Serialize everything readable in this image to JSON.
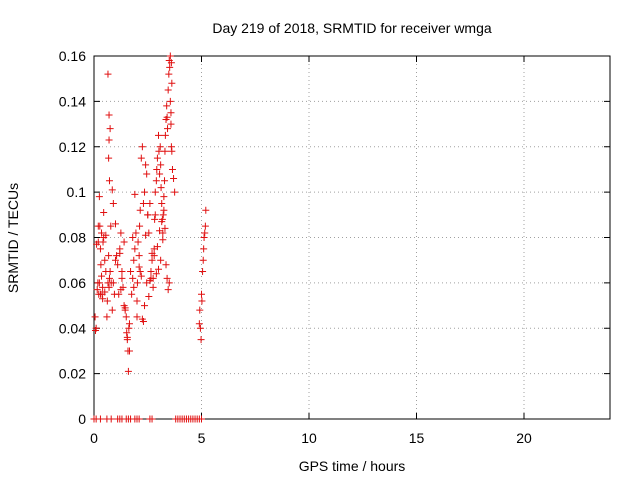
{
  "chart_data": {
    "type": "scatter",
    "title": "Day 219 of 2018, SRMTID for receiver wmga",
    "xlabel": "GPS time / hours",
    "ylabel": "SRMTID / TECUs",
    "xlim": [
      0,
      24
    ],
    "ylim": [
      0,
      0.16
    ],
    "xticks": [
      0,
      5,
      10,
      15,
      20
    ],
    "xtick_labels": [
      "0",
      "5",
      "10",
      "15",
      "20"
    ],
    "yticks": [
      0,
      0.02,
      0.04,
      0.06,
      0.08,
      0.1,
      0.12,
      0.14,
      0.16
    ],
    "ytick_labels": [
      "0",
      "0.02",
      "0.04",
      "0.06",
      "0.08",
      "0.1",
      "0.12",
      "0.14",
      "0.16"
    ],
    "grid": true,
    "marker": "+",
    "color": "#e01010",
    "series": [
      {
        "name": "SRMTID",
        "x": [
          0.05,
          0.07,
          0.1,
          0.12,
          0.15,
          0.18,
          0.2,
          0.22,
          0.25,
          0.27,
          0.3,
          0.32,
          0.35,
          0.38,
          0.4,
          0.42,
          0.45,
          0.5,
          0.55,
          0.6,
          0.62,
          0.65,
          0.68,
          0.7,
          0.72,
          0.75,
          0.78,
          0.8,
          0.85,
          0.9,
          0.95,
          1.0,
          1.05,
          1.1,
          1.15,
          1.2,
          1.25,
          1.3,
          1.35,
          1.4,
          1.45,
          1.5,
          1.52,
          1.55,
          1.58,
          1.6,
          1.62,
          1.65,
          1.7,
          1.75,
          1.8,
          1.85,
          1.9,
          1.95,
          2.0,
          2.02,
          2.05,
          2.1,
          2.12,
          2.15,
          2.2,
          2.25,
          2.3,
          2.35,
          2.4,
          2.45,
          2.5,
          2.55,
          2.6,
          2.65,
          2.7,
          2.75,
          2.8,
          2.82,
          2.85,
          2.9,
          2.92,
          2.95,
          3.0,
          3.02,
          3.05,
          3.08,
          3.1,
          3.12,
          3.15,
          3.18,
          3.2,
          3.22,
          3.25,
          3.28,
          3.3,
          3.32,
          3.35,
          3.38,
          3.4,
          3.42,
          3.45,
          3.48,
          3.5,
          3.52,
          3.55,
          3.58,
          3.6,
          3.62,
          3.65,
          3.7,
          3.75,
          4.9,
          4.92,
          4.95,
          4.98,
          5.0,
          5.02,
          5.05,
          5.08,
          5.1,
          5.12,
          5.15,
          5.18,
          5.2,
          0.0,
          0.1,
          0.3,
          0.6,
          0.8,
          1.1,
          1.2,
          1.3,
          1.5,
          1.6,
          1.7,
          1.9,
          2.0,
          2.1,
          2.6,
          2.7,
          3.8,
          3.9,
          4.0,
          4.1,
          4.2,
          4.3,
          4.4,
          4.5,
          4.6,
          4.7,
          4.8,
          4.9,
          5.0,
          0.65,
          0.7,
          0.75,
          0.7,
          0.68,
          0.72,
          3.55,
          3.6,
          3.58,
          3.62,
          0.4,
          0.5,
          0.3,
          0.25,
          0.2,
          0.35,
          0.45,
          0.55,
          0.85,
          0.9,
          1.0,
          1.2,
          1.4,
          1.3,
          1.25,
          1.45,
          1.55,
          1.65,
          1.85,
          2.15,
          2.25,
          2.35,
          2.45,
          2.55,
          2.65,
          2.75,
          2.85,
          2.95,
          3.05,
          3.15,
          3.25,
          3.35,
          3.45,
          3.5,
          3.4,
          3.3,
          3.2,
          3.1,
          3.0,
          2.9,
          2.8,
          2.7,
          2.6,
          2.5,
          2.4,
          2.3,
          2.2,
          2.1,
          2.0,
          1.9,
          1.8
        ],
        "y": [
          0.045,
          0.039,
          0.04,
          0.077,
          0.057,
          0.06,
          0.085,
          0.055,
          0.098,
          0.085,
          0.075,
          0.068,
          0.082,
          0.055,
          0.058,
          0.078,
          0.08,
          0.07,
          0.065,
          0.045,
          0.052,
          0.06,
          0.072,
          0.058,
          0.062,
          0.065,
          0.085,
          0.06,
          0.048,
          0.06,
          0.055,
          0.07,
          0.072,
          0.068,
          0.055,
          0.075,
          0.082,
          0.065,
          0.058,
          0.05,
          0.048,
          0.045,
          0.038,
          0.035,
          0.03,
          0.021,
          0.04,
          0.042,
          0.065,
          0.055,
          0.062,
          0.07,
          0.075,
          0.082,
          0.045,
          0.06,
          0.078,
          0.072,
          0.085,
          0.092,
          0.115,
          0.12,
          0.095,
          0.1,
          0.112,
          0.108,
          0.09,
          0.082,
          0.095,
          0.065,
          0.07,
          0.062,
          0.075,
          0.088,
          0.1,
          0.105,
          0.11,
          0.115,
          0.125,
          0.118,
          0.108,
          0.12,
          0.112,
          0.102,
          0.095,
          0.088,
          0.082,
          0.09,
          0.098,
          0.105,
          0.118,
          0.125,
          0.132,
          0.138,
          0.133,
          0.128,
          0.145,
          0.152,
          0.158,
          0.155,
          0.14,
          0.13,
          0.12,
          0.118,
          0.11,
          0.106,
          0.1,
          0.042,
          0.048,
          0.04,
          0.035,
          0.055,
          0.052,
          0.065,
          0.07,
          0.075,
          0.08,
          0.082,
          0.085,
          0.092,
          0.0,
          0.0,
          0.0,
          0.0,
          0.0,
          0.0,
          0.0,
          0.0,
          0.0,
          0.0,
          0.0,
          0.0,
          0.0,
          0.0,
          0.0,
          0.0,
          0.0,
          0.0,
          0.0,
          0.0,
          0.0,
          0.0,
          0.0,
          0.0,
          0.0,
          0.0,
          0.0,
          0.0,
          0.0,
          0.152,
          0.134,
          0.128,
          0.123,
          0.115,
          0.105,
          0.16,
          0.157,
          0.135,
          0.148,
          0.053,
          0.056,
          0.055,
          0.06,
          0.078,
          0.063,
          0.091,
          0.081,
          0.101,
          0.095,
          0.086,
          0.073,
          0.078,
          0.062,
          0.057,
          0.049,
          0.036,
          0.03,
          0.058,
          0.065,
          0.044,
          0.05,
          0.06,
          0.054,
          0.062,
          0.058,
          0.09,
          0.076,
          0.083,
          0.087,
          0.092,
          0.068,
          0.057,
          0.06,
          0.062,
          0.084,
          0.079,
          0.07,
          0.066,
          0.064,
          0.072,
          0.073,
          0.061,
          0.09,
          0.081,
          0.043,
          0.063,
          0.067,
          0.052,
          0.099,
          0.08
        ]
      }
    ]
  }
}
